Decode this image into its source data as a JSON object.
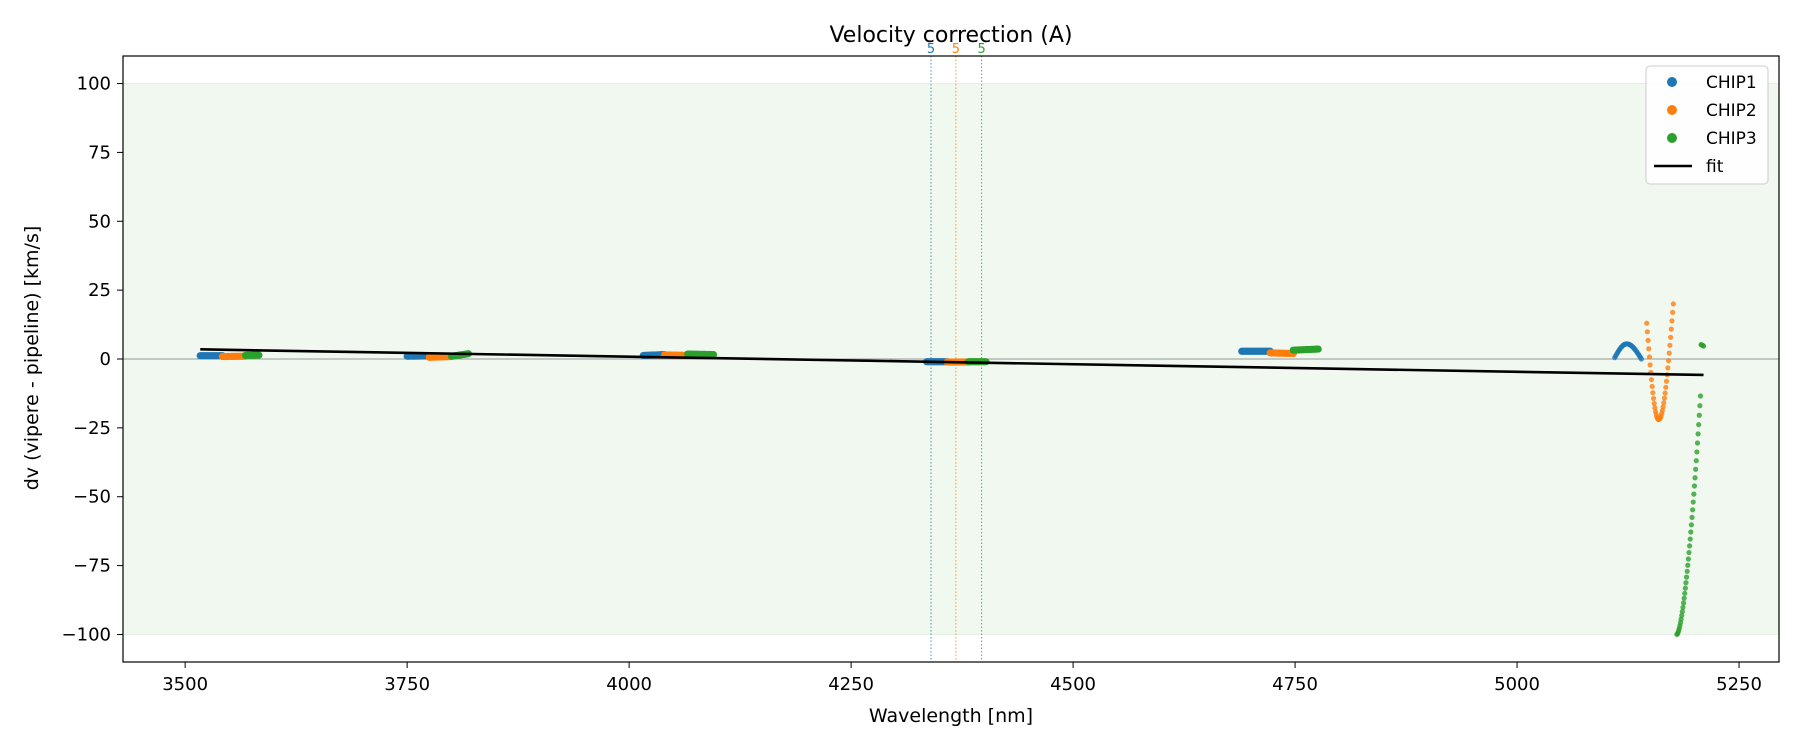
{
  "chart_data": {
    "type": "scatter",
    "title": "Velocity correction (A)",
    "xlabel": "Wavelength [nm]",
    "ylabel": "dv (vipere - pipeline) [km/s]",
    "xlim": [
      3430,
      5295
    ],
    "ylim": [
      -110,
      110
    ],
    "xticks": [
      3500,
      3750,
      4000,
      4250,
      4500,
      4750,
      5000,
      5250
    ],
    "yticks": [
      100,
      75,
      50,
      25,
      0,
      -25,
      -50,
      -75,
      -100
    ],
    "xtick_labels": [
      "3500",
      "3750",
      "4000",
      "4250",
      "4500",
      "4750",
      "5000",
      "5250"
    ],
    "ytick_labels": [
      "100",
      "75",
      "50",
      "25",
      "0",
      "−25",
      "−50",
      "−75",
      "−100"
    ],
    "grid": false,
    "legend_position": "top-right",
    "shaded_band": {
      "y_from": -100,
      "y_to": 100,
      "color": "#f0f8f0"
    },
    "zero_line": {
      "y": 0,
      "color": "#999999"
    },
    "series": [
      {
        "name": "CHIP1",
        "color": "#1f77b4",
        "segments": [
          {
            "type": "linear",
            "x0": 3517,
            "x1": 3542,
            "y0": 1.2,
            "y1": 1.2,
            "n": 16
          },
          {
            "type": "linear",
            "x0": 3750,
            "x1": 3775,
            "y0": 1.0,
            "y1": 1.1,
            "n": 16
          },
          {
            "type": "linear",
            "x0": 4016,
            "x1": 4040,
            "y0": 1.3,
            "y1": 1.6,
            "n": 16
          },
          {
            "type": "linear",
            "x0": 4335,
            "x1": 4358,
            "y0": -1.0,
            "y1": -1.0,
            "n": 16
          },
          {
            "type": "linear",
            "x0": 4690,
            "x1": 4722,
            "y0": 2.8,
            "y1": 2.8,
            "n": 18
          },
          {
            "type": "arc",
            "x0": 5110,
            "x1": 5140,
            "y_start": 0.5,
            "y_peak": 5.5,
            "y_end": 0.0,
            "n": 30
          }
        ]
      },
      {
        "name": "CHIP2",
        "color": "#ff7f0e",
        "segments": [
          {
            "type": "linear",
            "x0": 3542,
            "x1": 3568,
            "y0": 0.9,
            "y1": 1.0,
            "n": 16
          },
          {
            "type": "linear",
            "x0": 3775,
            "x1": 3800,
            "y0": 0.6,
            "y1": 0.9,
            "n": 16
          },
          {
            "type": "linear",
            "x0": 4040,
            "x1": 4066,
            "y0": 1.5,
            "y1": 1.3,
            "n": 16
          },
          {
            "type": "linear",
            "x0": 4358,
            "x1": 4382,
            "y0": -1.1,
            "y1": -1.1,
            "n": 16
          },
          {
            "type": "linear",
            "x0": 4722,
            "x1": 4748,
            "y0": 2.2,
            "y1": 2.0,
            "n": 16
          },
          {
            "type": "dip",
            "x0": 5146,
            "x1": 5176,
            "y_start": 13,
            "y_min": -22,
            "y_end": 20,
            "n": 40
          }
        ]
      },
      {
        "name": "CHIP3",
        "color": "#2ca02c",
        "segments": [
          {
            "type": "linear",
            "x0": 3568,
            "x1": 3583,
            "y0": 1.3,
            "y1": 1.4,
            "n": 12
          },
          {
            "type": "linear",
            "x0": 3800,
            "x1": 3819,
            "y0": 1.0,
            "y1": 1.9,
            "n": 12
          },
          {
            "type": "linear",
            "x0": 4066,
            "x1": 4095,
            "y0": 1.8,
            "y1": 1.6,
            "n": 16
          },
          {
            "type": "linear",
            "x0": 4382,
            "x1": 4402,
            "y0": -1.0,
            "y1": -1.0,
            "n": 14
          },
          {
            "type": "linear",
            "x0": 4748,
            "x1": 4776,
            "y0": 3.2,
            "y1": 3.6,
            "n": 16
          },
          {
            "type": "dip",
            "x0": 5180,
            "x1": 5210,
            "y_start": -100,
            "y_min": -100,
            "y_end": 5,
            "n": 45
          }
        ]
      }
    ],
    "fit": {
      "name": "fit",
      "color": "#000000",
      "x": [
        3517,
        5210
      ],
      "y": [
        3.5,
        -5.8
      ]
    },
    "vlines": [
      {
        "x": 4340,
        "label": "5",
        "color": "#1f77b4"
      },
      {
        "x": 4368,
        "label": "5",
        "color": "#ff7f0e"
      },
      {
        "x": 4397,
        "label": "5",
        "color": "#2ca02c"
      }
    ]
  }
}
